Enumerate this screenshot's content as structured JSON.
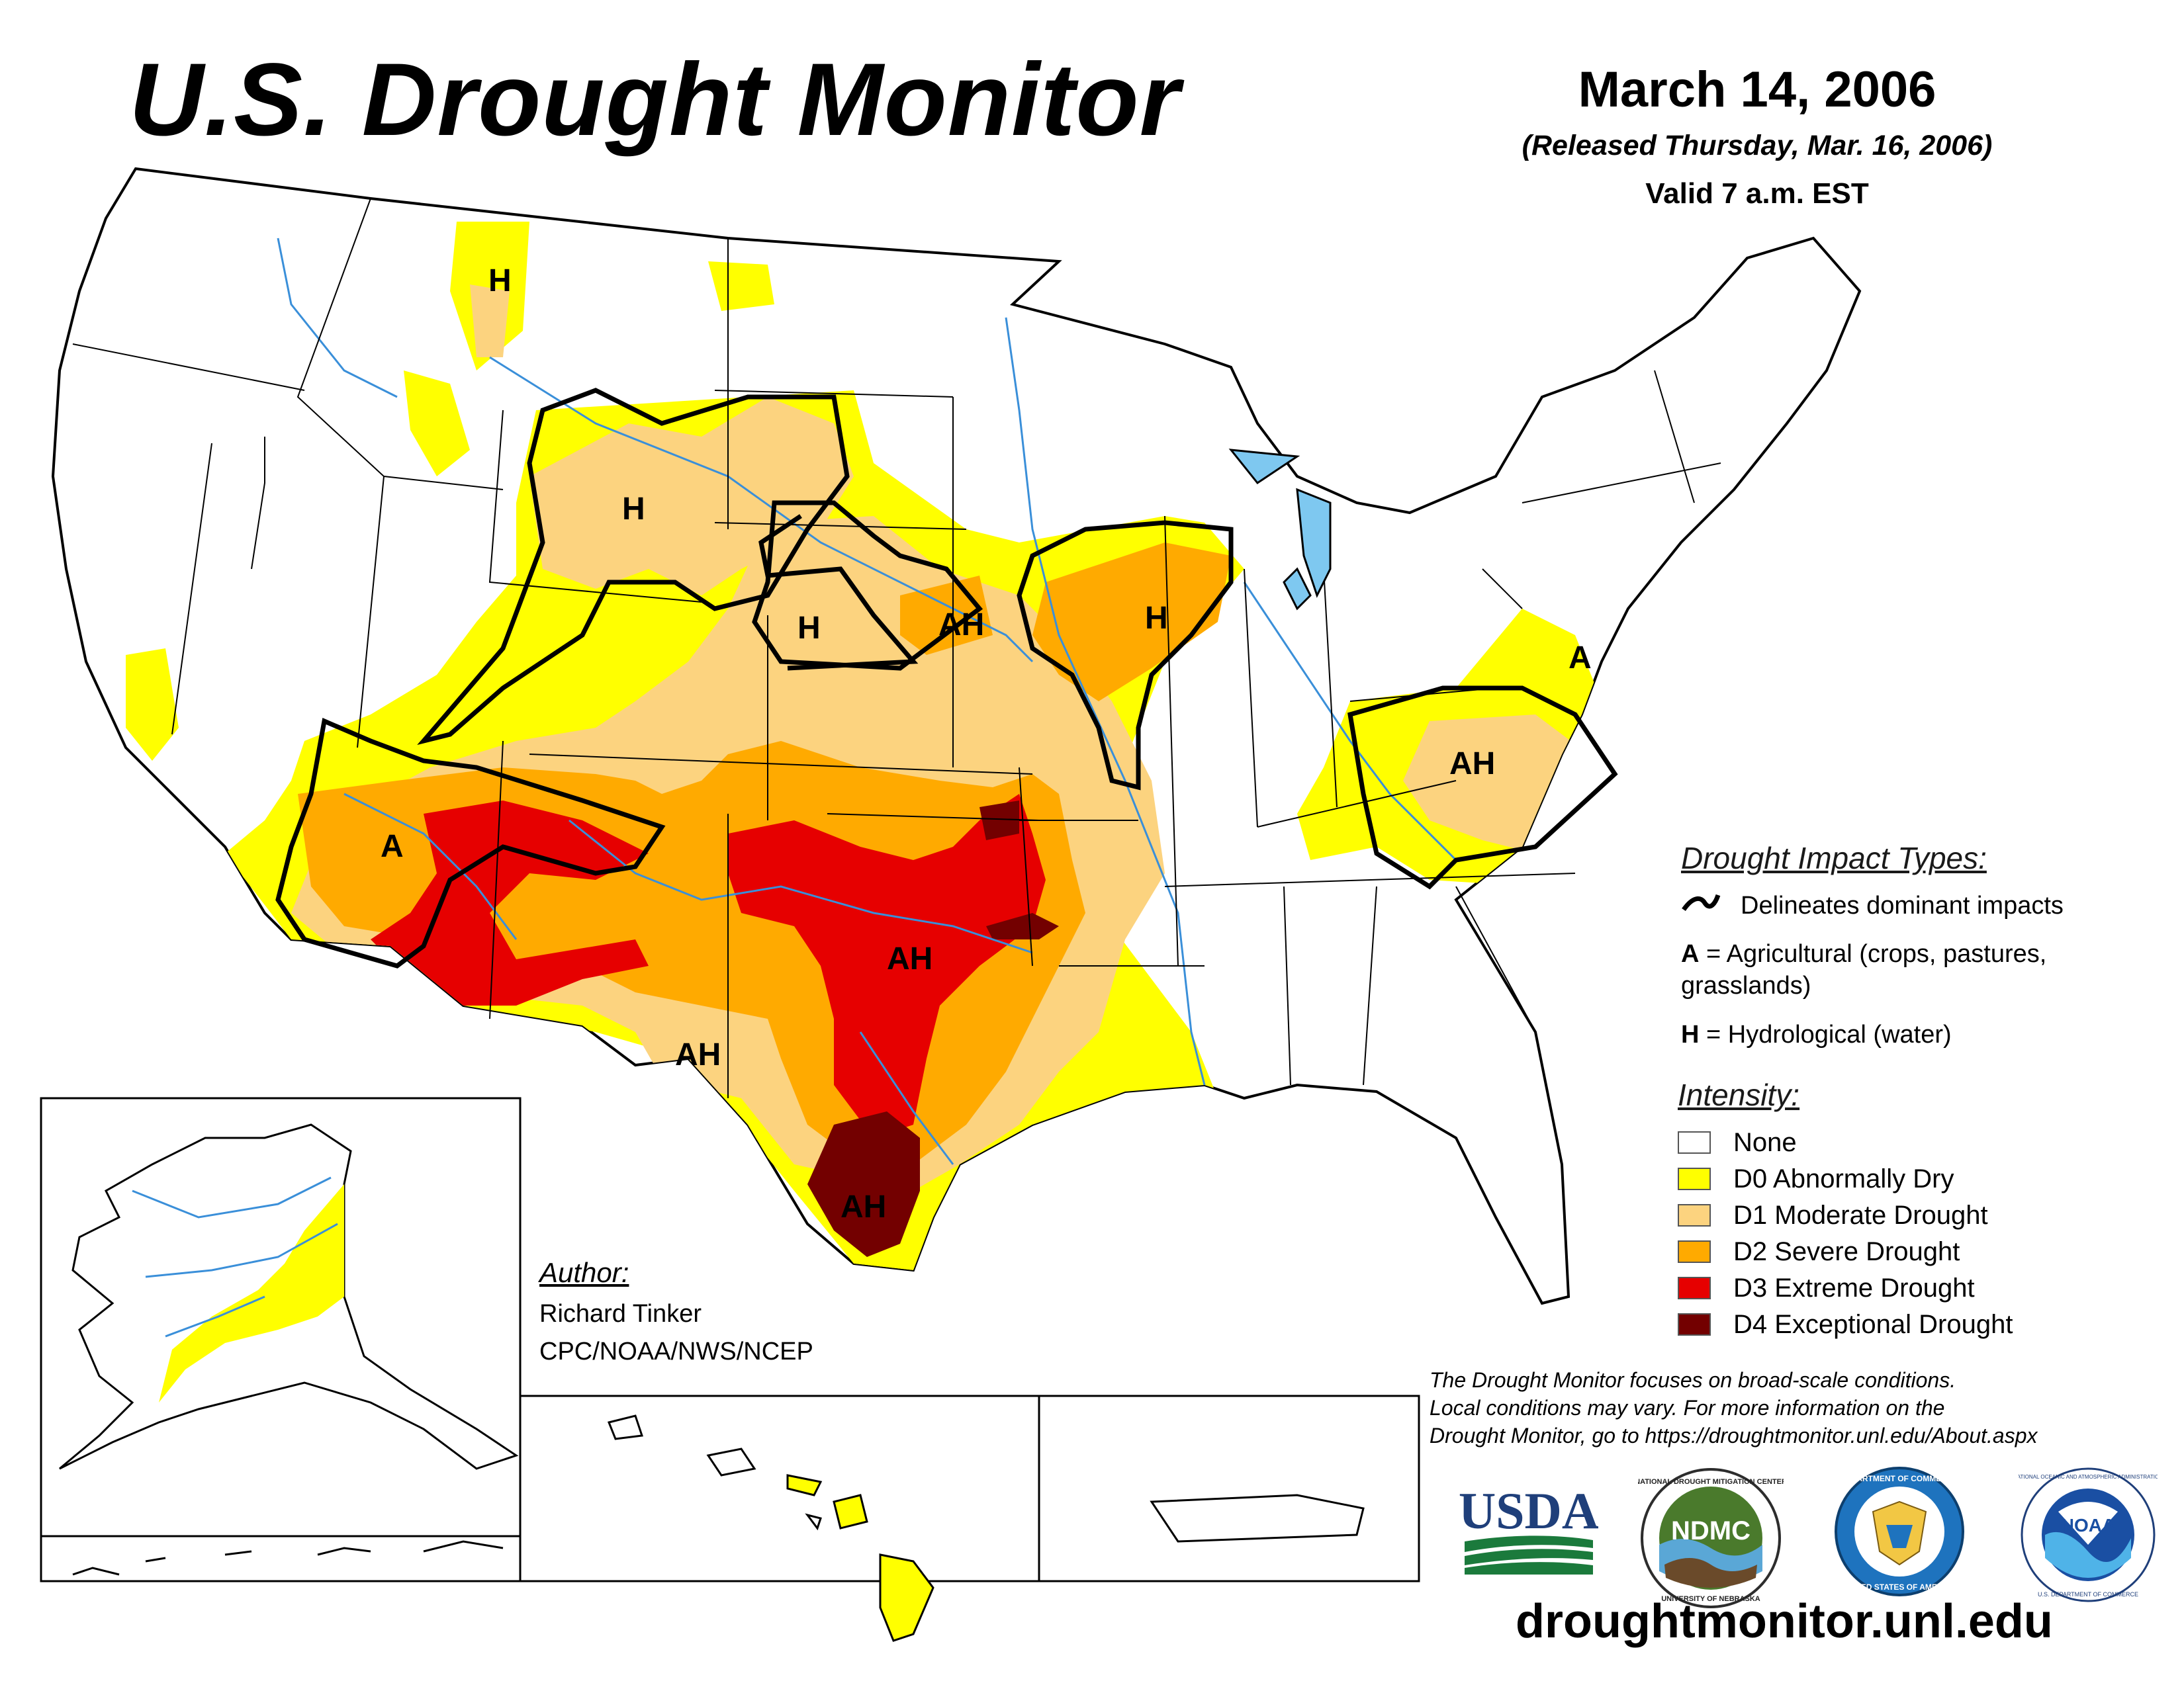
{
  "header": {
    "title": "U.S. Drought Monitor",
    "date": "March 14, 2006",
    "released": "(Released Thursday, Mar. 16, 2006)",
    "valid": "Valid 7 a.m. EST"
  },
  "impact_legend": {
    "heading": "Drought Impact Types:",
    "delineates": "Delineates dominant impacts",
    "agricultural_key": "A",
    "agricultural_text": "= Agricultural (crops, pastures,",
    "agricultural_text2": "grasslands)",
    "hydrological_key": "H",
    "hydrological_text": "= Hydrological (water)"
  },
  "intensity_legend": {
    "heading": "Intensity:",
    "items": [
      {
        "label": "None",
        "color": "#ffffff"
      },
      {
        "label": "D0 Abnormally Dry",
        "color": "#ffff00"
      },
      {
        "label": "D1 Moderate Drought",
        "color": "#fcd37f"
      },
      {
        "label": "D2 Severe Drought",
        "color": "#ffaa00"
      },
      {
        "label": "D3 Extreme Drought",
        "color": "#e60000"
      },
      {
        "label": "D4 Exceptional Drought",
        "color": "#730000"
      }
    ]
  },
  "map_labels": {
    "montana": "H",
    "wyoming": "H",
    "nebraska": "H",
    "iowa": "AH",
    "illinois": "H",
    "arizona": "A",
    "oklahoma": "AH",
    "west_texas": "AH",
    "south_texas": "AH",
    "virginia": "A",
    "nc": "AH"
  },
  "author": {
    "heading": "Author:",
    "name": "Richard Tinker",
    "org": "CPC/NOAA/NWS/NCEP"
  },
  "disclaimer": {
    "line1": "The Drought Monitor focuses on broad-scale conditions.",
    "line2": "Local conditions may vary. For more information on the",
    "line3": "Drought Monitor, go to https://droughtmonitor.unl.edu/About.aspx"
  },
  "logos": {
    "usda": "USDA",
    "ndmc": "NDMC",
    "ndmc_ring_top": "NATIONAL DROUGHT MITIGATION CENTER",
    "ndmc_ring_bottom": "UNIVERSITY OF NEBRASKA",
    "commerce_ring_top": "DEPARTMENT OF COMMERCE",
    "commerce_ring_bottom": "UNITED STATES OF AMERICA",
    "noaa": "NOAA",
    "noaa_ring": "NATIONAL OCEANIC AND ATMOSPHERIC ADMINISTRATION",
    "noaa_ring_bottom": "U.S. DEPARTMENT OF COMMERCE"
  },
  "website": "droughtmonitor.unl.edu",
  "colors": {
    "d0": "#ffff00",
    "d1": "#fcd37f",
    "d2": "#ffaa00",
    "d3": "#e60000",
    "d4": "#730000",
    "water": "#3a8fd9",
    "border": "#000000"
  }
}
